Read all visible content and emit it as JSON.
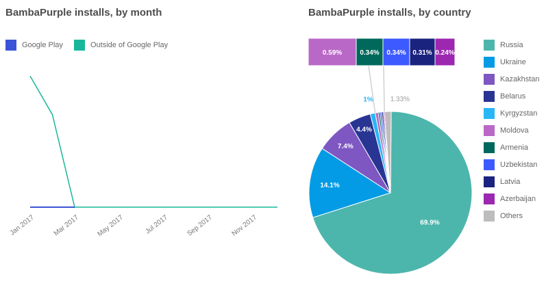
{
  "titles": {
    "left": "BambaPurple installs, by month",
    "right": "BambaPurple installs, by country"
  },
  "chart_data": [
    {
      "type": "line",
      "title": "BambaPurple installs, by month",
      "x": [
        "Jan 2017",
        "Feb 2017",
        "Mar 2017",
        "Apr 2017",
        "May 2017",
        "Jun 2017",
        "Jul 2017",
        "Aug 2017",
        "Sep 2017",
        "Oct 2017",
        "Nov 2017",
        "Dec 2017"
      ],
      "x_tick_labels": [
        "Jan 2017",
        "Mar 2017",
        "May 2017",
        "Jul 2017",
        "Sep 2017",
        "Nov 2017"
      ],
      "series": [
        {
          "name": "Google Play",
          "color": "#3b53d6",
          "values": [
            0,
            0,
            0,
            0,
            0,
            0,
            0,
            0,
            0,
            0,
            0,
            0
          ]
        },
        {
          "name": "Outside of Google Play",
          "color": "#17b89a",
          "values": [
            170,
            120,
            0,
            0,
            0,
            0,
            0,
            0,
            0,
            0,
            0,
            0
          ]
        }
      ],
      "legend": "top-left",
      "ylim": [
        0,
        180
      ]
    },
    {
      "type": "pie",
      "title": "BambaPurple installs, by country",
      "slices": [
        {
          "name": "Russia",
          "value": 69.9,
          "label": "69.9%",
          "color": "#4db6ac"
        },
        {
          "name": "Ukraine",
          "value": 14.1,
          "label": "14.1%",
          "color": "#039be5"
        },
        {
          "name": "Kazakhstan",
          "value": 7.4,
          "label": "7.4%",
          "color": "#7e57c2"
        },
        {
          "name": "Belarus",
          "value": 4.4,
          "label": "4.4%",
          "color": "#283593"
        },
        {
          "name": "Kyrgyzstan",
          "value": 1.0,
          "label": "1%",
          "color": "#29b6f6"
        },
        {
          "name": "Moldova",
          "value": 0.59,
          "label": "0.59%",
          "color": "#ba68c8"
        },
        {
          "name": "Armenia",
          "value": 0.34,
          "label": "0.34%",
          "color": "#00695c"
        },
        {
          "name": "Uzbekistan",
          "value": 0.34,
          "label": "0.34%",
          "color": "#3d5afe"
        },
        {
          "name": "Latvia",
          "value": 0.31,
          "label": "0.31%",
          "color": "#1a237e"
        },
        {
          "name": "Azerbaijan",
          "value": 0.24,
          "label": "0.24%",
          "color": "#9c27b0"
        },
        {
          "name": "Others",
          "value": 1.33,
          "label": "1.33%",
          "color": "#bdbdbd"
        }
      ],
      "detail_bar": [
        "Moldova",
        "Armenia",
        "Uzbekistan",
        "Latvia",
        "Azerbaijan"
      ],
      "legend": "right"
    }
  ]
}
